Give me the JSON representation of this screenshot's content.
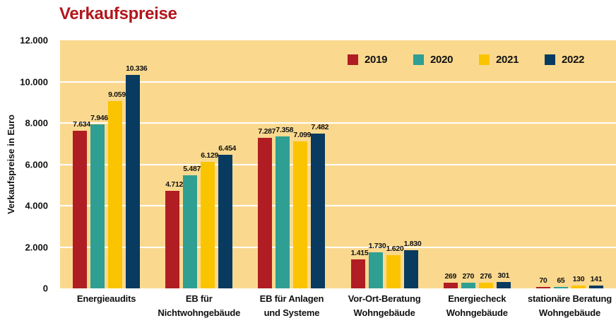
{
  "title": "Verkaufspreise",
  "colors": {
    "title": "#B2161B",
    "plot_bg": "#FAD98F",
    "grid": "#FFFFFF",
    "text": "#111111"
  },
  "chart_data": {
    "type": "bar",
    "title": "Verkaufspreise",
    "xlabel": "",
    "ylabel": "Verkaufspreise in Euro",
    "ylim": [
      0,
      12000
    ],
    "ytick_step": 2000,
    "ytick_labels": [
      "0",
      "2.000",
      "4.000",
      "6.000",
      "8.000",
      "10.000",
      "12.000"
    ],
    "grid": "horizontal white lines every 2000, tan plot background, no axis lines",
    "legend_position": "top-right inside plot area",
    "value_label_format": "thousands separated with dot, shown above each bar",
    "categories": [
      "Energieaudits",
      "EB für\nNichtwohngebäude",
      "EB für Anlagen\nund Systeme",
      "Vor-Ort-Beratung\nWohngebäude",
      "Energiecheck\nWohngebäude",
      "stationäre Beratung\nWohngebäude"
    ],
    "series": [
      {
        "name": "2019",
        "color": "#B01E23",
        "values": [
          7634,
          4712,
          7287,
          1415,
          269,
          70
        ]
      },
      {
        "name": "2020",
        "color": "#2F9F93",
        "values": [
          7946,
          5487,
          7358,
          1730,
          270,
          65
        ]
      },
      {
        "name": "2021",
        "color": "#FBC400",
        "values": [
          9059,
          6129,
          7099,
          1620,
          276,
          130
        ]
      },
      {
        "name": "2022",
        "color": "#093A60",
        "values": [
          10336,
          6454,
          7482,
          1830,
          301,
          141
        ]
      }
    ]
  }
}
